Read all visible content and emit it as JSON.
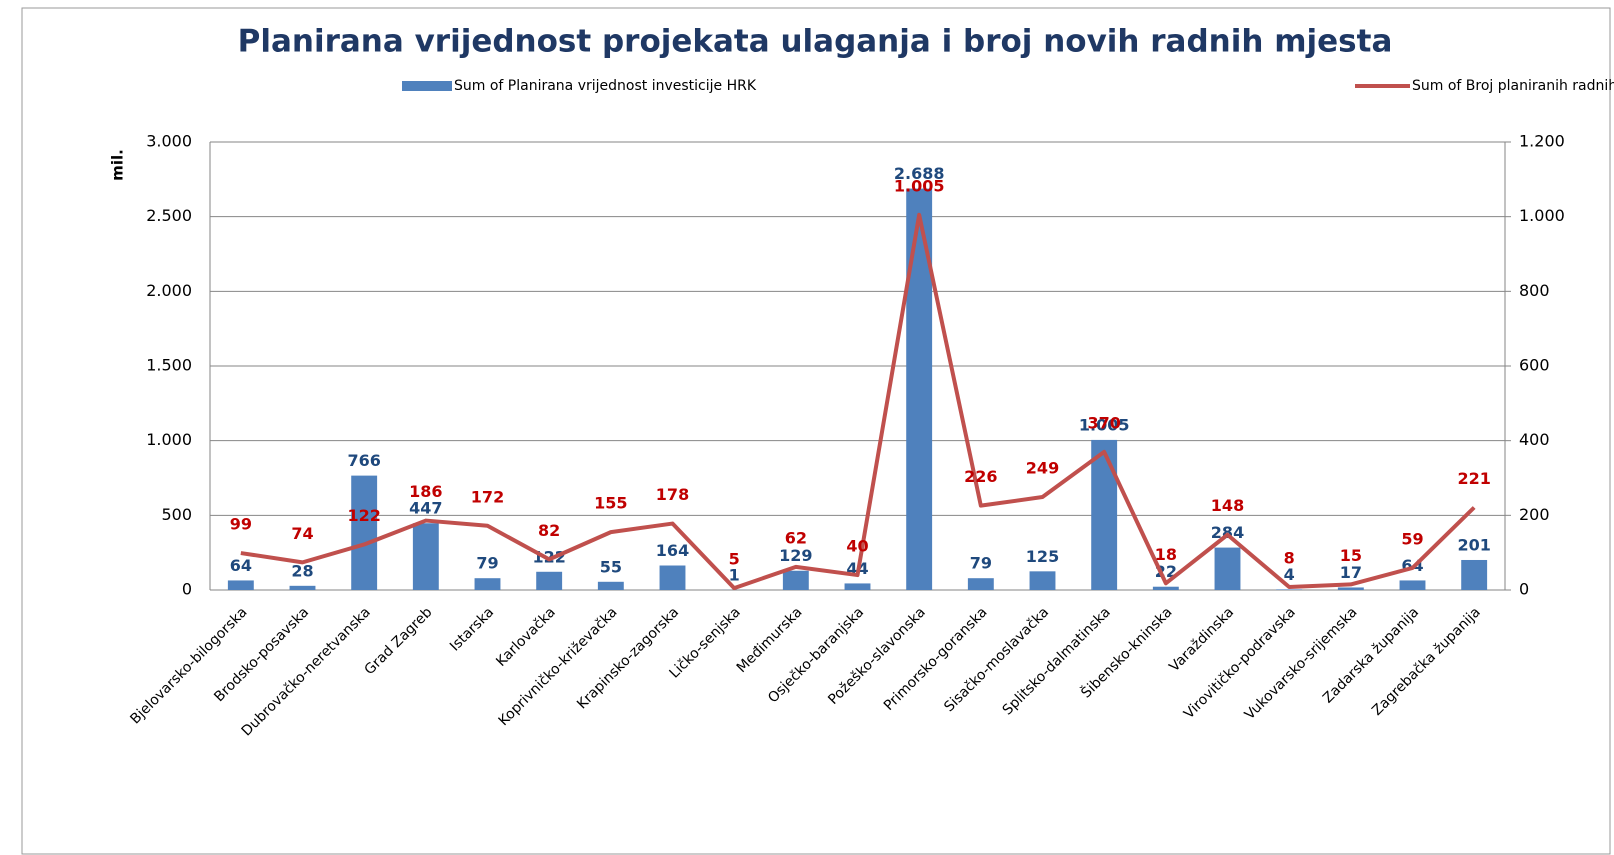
{
  "chart_data": {
    "type": "bar_line",
    "title": "Planirana vrijednost projekata ulaganja i broj novih radnih mjesta",
    "y_label": "mil.",
    "categories": [
      "Bjelovarsko-bilogorska",
      "Brodsko-posavska",
      "Dubrovačko-neretvanska",
      "Grad Zagreb",
      "Istarska",
      "Karlovačka",
      "Koprivničko-križevačka",
      "Krapinsko-zagorska",
      "Ličko-senjska",
      "Međimurska",
      "Osječko-baranjska",
      "Požeško-slavonska",
      "Primorsko-goranska",
      "Sisačko-moslavačka",
      "Splitsko-dalmatinska",
      "Šibensko-kninska",
      "Varaždinska",
      "Virovitičko-podravska",
      "Vukovarsko-srijemska",
      "Zadarska županija",
      "Zagrebačka županija"
    ],
    "series": [
      {
        "name": "Sum of Planirana vrijednost investicije HRK",
        "type": "bar",
        "color": "#4f81bd",
        "label_color": "#1f497d",
        "values": [
          64,
          28,
          766,
          447,
          79,
          122,
          55,
          164,
          1,
          129,
          44,
          2688,
          79,
          125,
          1005,
          22,
          284,
          4,
          17,
          64,
          201
        ],
        "value_labels": [
          "64",
          "28",
          "766",
          "447",
          "79",
          "122",
          "55",
          "164",
          "1",
          "129",
          "44",
          "2.688",
          "79",
          "125",
          "1.005",
          "22",
          "284",
          "4",
          "17",
          "64",
          "201"
        ]
      },
      {
        "name": "Sum of Broj planiranih radnih mjesta",
        "type": "line",
        "axis": "y2",
        "color": "#c0504d",
        "label_color": "#c00000",
        "values": [
          99,
          74,
          122,
          186,
          172,
          82,
          155,
          178,
          5,
          62,
          40,
          1005,
          226,
          249,
          370,
          18,
          148,
          8,
          15,
          59,
          221
        ],
        "value_labels": [
          "99",
          "74",
          "122",
          "186",
          "172",
          "82",
          "155",
          "178",
          "5",
          "62",
          "40",
          "1.005",
          "226",
          "249",
          "370",
          "18",
          "148",
          "8",
          "15",
          "59",
          "221"
        ]
      }
    ],
    "ylim": [
      0,
      3000
    ],
    "yticks": [
      0,
      500,
      {
        "value": 1000,
        "label": "1.000"
      },
      {
        "value": 1500,
        "label": "1.500"
      },
      {
        "value": 2000,
        "label": "2.000"
      },
      {
        "value": 2500,
        "label": "2.500"
      },
      {
        "value": 3000,
        "label": "3.000"
      }
    ],
    "y2lim": [
      0,
      1200
    ],
    "y2ticks": [
      0,
      200,
      400,
      600,
      800,
      {
        "value": 1000,
        "label": "1.000"
      },
      {
        "value": 1200,
        "label": "1.200"
      }
    ],
    "grid": true,
    "legend": "top"
  }
}
